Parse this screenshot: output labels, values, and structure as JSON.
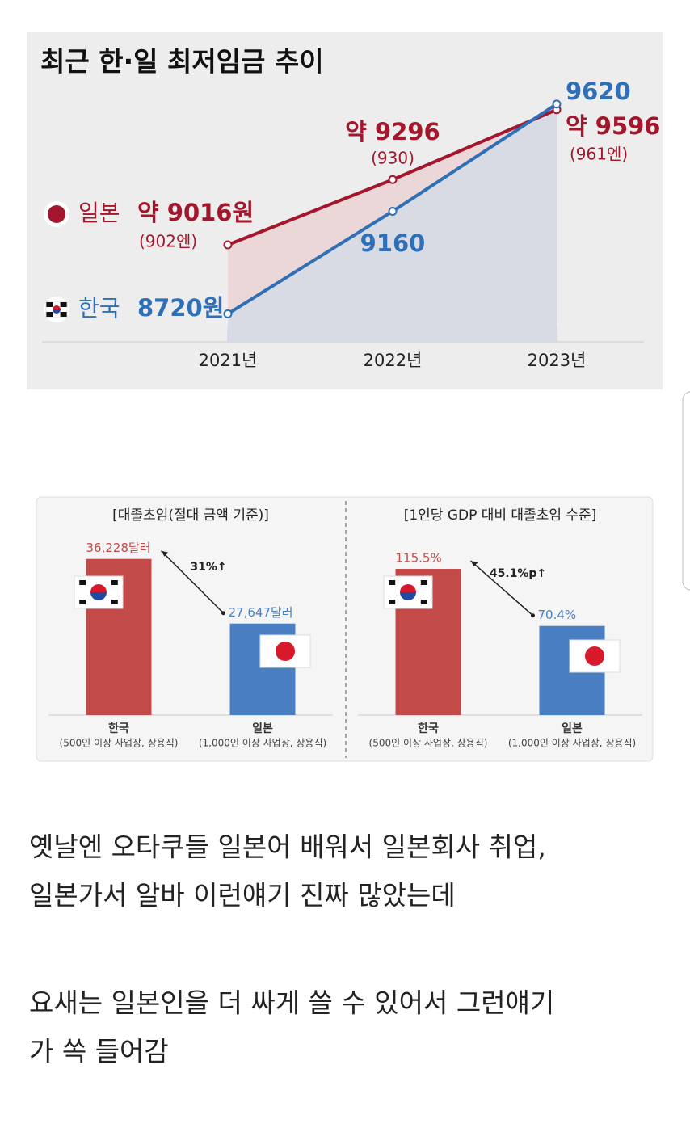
{
  "chart_data": [
    {
      "type": "line",
      "title": "최근 한·일 최저임금 추이",
      "categories": [
        "2021년",
        "2022년",
        "2023년"
      ],
      "series": [
        {
          "name": "일본",
          "color": "#a3162c",
          "values": [
            9016,
            9296,
            9596
          ],
          "value_labels": [
            "약 9016원",
            "약 9296",
            "약 9596"
          ],
          "sub_labels": [
            "(902엔)",
            "(930)",
            "(961엔)"
          ]
        },
        {
          "name": "한국",
          "color": "#2f6fb8",
          "values": [
            8720,
            9160,
            9620
          ],
          "value_labels": [
            "8720원",
            "9160",
            "9620"
          ]
        }
      ],
      "ylim": [
        8600,
        9720
      ]
    },
    {
      "type": "bar",
      "title": "[대졸초임(절대 금액 기준)]",
      "categories": [
        "한국",
        "일본"
      ],
      "category_notes": [
        "(500인 이상 사업장, 상용직)",
        "(1,000인 이상 사업장, 상용직)"
      ],
      "values": [
        36228,
        27647
      ],
      "value_labels": [
        "36,228달러",
        "27,647달러"
      ],
      "colors": [
        "#c24a48",
        "#4a7ec2"
      ],
      "annotation": "31%↑",
      "ylim": [
        15500,
        40700
      ]
    },
    {
      "type": "bar",
      "title": "[1인당 GDP 대비 대졸초임 수준]",
      "categories": [
        "한국",
        "일본"
      ],
      "category_notes": [
        "(500인 이상 사업장, 상용직)",
        "(1,000인 이상 사업장, 상용직)"
      ],
      "values": [
        115.5,
        70.4
      ],
      "value_labels": [
        "115.5%",
        "70.4%"
      ],
      "colors": [
        "#c24a48",
        "#4a7ec2"
      ],
      "annotation": "45.1%p↑",
      "ylim": [
        0,
        150
      ]
    }
  ],
  "post": {
    "lines": [
      "옛날엔 오타쿠들 일본어 배워서 일본회사 취업,",
      "일본가서 알바 이런얘기 진짜 많았는데",
      "요새는 일본인을 더 싸게 쓸 수 있어서 그런얘기",
      "가 쏙 들어감"
    ]
  }
}
